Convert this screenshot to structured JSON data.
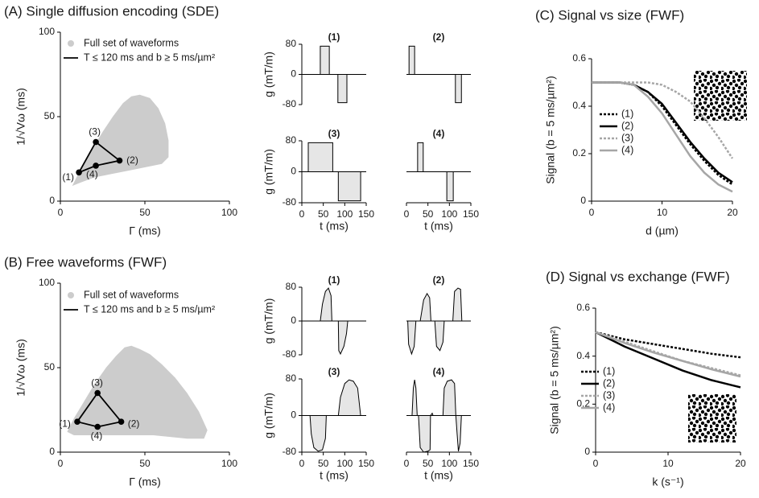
{
  "chart_data": [
    {
      "type": "scatter",
      "title": "(A) Single diffusion encoding (SDE)",
      "xlabel": "Γ (ms)",
      "ylabel": "1/√Vω (ms)",
      "xlim": [
        0,
        100
      ],
      "ylim": [
        0,
        100
      ],
      "xticks": [
        0,
        50,
        100
      ],
      "yticks": [
        0,
        50,
        100
      ],
      "series": [
        {
          "name": "Full set of waveforms",
          "kind": "area",
          "color": "#cccccc",
          "x": [
            7,
            10,
            14,
            19,
            25,
            31,
            37,
            42,
            47,
            53,
            58,
            62,
            64,
            64,
            60,
            50,
            40,
            30,
            20,
            12
          ],
          "values": [
            9,
            15,
            22,
            31,
            41,
            50,
            58,
            62,
            63,
            61,
            55,
            46,
            36,
            26,
            22,
            20,
            18,
            16,
            14,
            11
          ]
        },
        {
          "name": "T ≤ 120 ms and b ≥ 5 ms/µm²",
          "kind": "loop",
          "color": "#000000",
          "x": [
            11,
            21,
            35,
            21
          ],
          "values": [
            17,
            35,
            24,
            21
          ],
          "point_labels": [
            "(1)",
            "(3)",
            "(2)",
            "(4)"
          ]
        }
      ]
    },
    {
      "type": "wave",
      "label": "(1)",
      "ylabel": "g (mT/m)",
      "xlim": [
        0,
        150
      ],
      "ylim": [
        -80,
        80
      ],
      "yticks": [
        -80,
        0,
        80
      ],
      "x": [
        0,
        43,
        43,
        64,
        64,
        84,
        84,
        105,
        105,
        150
      ],
      "values": [
        0,
        0,
        75,
        75,
        0,
        0,
        -75,
        -75,
        0,
        0
      ]
    },
    {
      "type": "wave",
      "label": "(2)",
      "xlim": [
        0,
        150
      ],
      "ylim": [
        -80,
        80
      ],
      "x": [
        0,
        6,
        6,
        19,
        19,
        114,
        114,
        128,
        128,
        150
      ],
      "values": [
        0,
        0,
        75,
        75,
        0,
        0,
        -75,
        -75,
        0,
        0
      ]
    },
    {
      "type": "wave",
      "label": "(3)",
      "ylabel": "g (mT/m)",
      "xlabel": "t (ms)",
      "xlim": [
        0,
        150
      ],
      "ylim": [
        -80,
        80
      ],
      "yticks": [
        -80,
        0,
        80
      ],
      "xticks": [
        0,
        50,
        100,
        150
      ],
      "x": [
        0,
        15,
        15,
        72,
        72,
        85,
        85,
        137,
        137,
        150
      ],
      "values": [
        0,
        0,
        75,
        75,
        0,
        0,
        -75,
        -75,
        0,
        0
      ]
    },
    {
      "type": "wave",
      "label": "(4)",
      "xlabel": "t (ms)",
      "xlim": [
        0,
        150
      ],
      "ylim": [
        -80,
        80
      ],
      "xticks": [
        0,
        50,
        100,
        150
      ],
      "x": [
        0,
        26,
        26,
        39,
        39,
        94,
        94,
        109,
        109,
        150
      ],
      "values": [
        0,
        0,
        75,
        75,
        0,
        0,
        -75,
        -75,
        0,
        0
      ]
    },
    {
      "type": "scatter",
      "title": "(B) Free waveforms (FWF)",
      "xlabel": "Γ (ms)",
      "ylabel": "1/√Vω (ms)",
      "xlim": [
        0,
        100
      ],
      "ylim": [
        0,
        100
      ],
      "xticks": [
        0,
        50,
        100
      ],
      "yticks": [
        0,
        50,
        100
      ],
      "series": [
        {
          "name": "Full set of waveforms",
          "kind": "area",
          "color": "#cccccc",
          "x": [
            4,
            8,
            14,
            20,
            27,
            33,
            38,
            42,
            47,
            53,
            60,
            68,
            75,
            82,
            87,
            85,
            75,
            65,
            55,
            45,
            35,
            25,
            15,
            8
          ],
          "values": [
            12,
            20,
            30,
            40,
            50,
            57,
            62,
            63,
            61,
            58,
            52,
            44,
            35,
            24,
            13,
            8,
            8,
            9,
            10,
            10,
            10,
            10,
            10,
            10
          ]
        },
        {
          "name": "T ≤ 120 ms and b ≥ 5 ms/µm²",
          "kind": "loop",
          "color": "#000000",
          "x": [
            10,
            22,
            36,
            22
          ],
          "values": [
            18,
            35,
            18,
            15
          ],
          "point_labels": [
            "(1)",
            "(3)",
            "(2)",
            "(4)"
          ]
        }
      ]
    },
    {
      "type": "wave",
      "label": "(1)",
      "ylabel": "g (mT/m)",
      "xlim": [
        0,
        150
      ],
      "ylim": [
        -80,
        80
      ],
      "yticks": [
        -80,
        0,
        80
      ],
      "x": [
        0,
        43,
        48,
        55,
        62,
        68,
        70,
        85,
        86,
        90,
        98,
        104,
        107,
        150
      ],
      "values": [
        0,
        0,
        40,
        70,
        78,
        60,
        0,
        0,
        -70,
        -78,
        -60,
        -30,
        0,
        0
      ]
    },
    {
      "type": "wave",
      "label": "(2)",
      "xlim": [
        0,
        150
      ],
      "ylim": [
        -80,
        80
      ],
      "x": [
        0,
        3,
        5,
        12,
        18,
        22,
        32,
        40,
        48,
        54,
        57,
        66,
        70,
        78,
        85,
        88,
        108,
        112,
        120,
        126,
        129,
        150
      ],
      "values": [
        0,
        0,
        -55,
        -78,
        -60,
        0,
        0,
        50,
        65,
        55,
        0,
        0,
        -60,
        -70,
        -50,
        0,
        0,
        70,
        78,
        75,
        0,
        0
      ]
    },
    {
      "type": "wave",
      "label": "(3)",
      "ylabel": "g (mT/m)",
      "xlabel": "t (ms)",
      "xlim": [
        0,
        150
      ],
      "ylim": [
        -80,
        80
      ],
      "yticks": [
        -80,
        0,
        80
      ],
      "xticks": [
        0,
        50,
        100,
        150
      ],
      "x": [
        0,
        19,
        22,
        28,
        38,
        48,
        55,
        57,
        85,
        90,
        100,
        110,
        120,
        130,
        137,
        150
      ],
      "values": [
        0,
        0,
        -40,
        -70,
        -78,
        -75,
        -50,
        0,
        0,
        40,
        70,
        78,
        75,
        60,
        0,
        0
      ]
    },
    {
      "type": "wave",
      "label": "(4)",
      "xlabel": "t (ms)",
      "xlim": [
        0,
        150
      ],
      "ylim": [
        -80,
        80
      ],
      "xticks": [
        0,
        50,
        100,
        150
      ],
      "x": [
        0,
        13,
        16,
        19,
        22,
        25,
        28,
        32,
        40,
        50,
        55,
        56,
        60,
        62,
        85,
        88,
        95,
        105,
        112,
        115,
        118,
        121,
        125,
        128,
        150
      ],
      "values": [
        0,
        0,
        60,
        78,
        60,
        0,
        0,
        -70,
        -80,
        -78,
        -75,
        0,
        5,
        0,
        0,
        60,
        75,
        78,
        70,
        0,
        -40,
        -78,
        -60,
        0,
        0
      ]
    },
    {
      "type": "line",
      "title": "(C) Signal vs size (FWF)",
      "xlabel": "d (µm)",
      "ylabel": "Signal (b = 5 ms/µm²)",
      "xlim": [
        0,
        20
      ],
      "ylim": [
        0,
        0.6
      ],
      "xticks": [
        0,
        10,
        20
      ],
      "yticks": [
        0,
        0.2,
        0.4,
        0.6
      ],
      "x": [
        0,
        2,
        4,
        6,
        8,
        10,
        12,
        14,
        16,
        18,
        20
      ],
      "series": [
        {
          "name": "(1)",
          "color": "#000000",
          "dash": true,
          "values": [
            0.5,
            0.5,
            0.5,
            0.49,
            0.46,
            0.4,
            0.32,
            0.24,
            0.17,
            0.11,
            0.07
          ]
        },
        {
          "name": "(2)",
          "color": "#000000",
          "dash": false,
          "values": [
            0.5,
            0.5,
            0.5,
            0.49,
            0.46,
            0.41,
            0.33,
            0.25,
            0.18,
            0.12,
            0.08
          ]
        },
        {
          "name": "(3)",
          "color": "#a6a6a6",
          "dash": true,
          "values": [
            0.5,
            0.5,
            0.5,
            0.5,
            0.5,
            0.49,
            0.46,
            0.42,
            0.35,
            0.27,
            0.18
          ]
        },
        {
          "name": "(4)",
          "color": "#a6a6a6",
          "dash": false,
          "values": [
            0.5,
            0.5,
            0.5,
            0.49,
            0.44,
            0.37,
            0.28,
            0.19,
            0.12,
            0.07,
            0.04
          ]
        }
      ]
    },
    {
      "type": "line",
      "title": "(D) Signal vs exchange (FWF)",
      "xlabel": "k (s⁻¹)",
      "ylabel": "Signal (b = 5 ms/µm²)",
      "xlim": [
        0,
        20
      ],
      "ylim": [
        0,
        0.6
      ],
      "xticks": [
        0,
        10,
        20
      ],
      "yticks": [
        0,
        0.2,
        0.4,
        0.6
      ],
      "x": [
        0,
        4,
        8,
        12,
        16,
        20
      ],
      "series": [
        {
          "name": "(1)",
          "color": "#000000",
          "dash": true,
          "values": [
            0.5,
            0.47,
            0.45,
            0.43,
            0.41,
            0.395
          ]
        },
        {
          "name": "(2)",
          "color": "#000000",
          "dash": false,
          "values": [
            0.5,
            0.44,
            0.39,
            0.34,
            0.3,
            0.27
          ]
        },
        {
          "name": "(3)",
          "color": "#a6a6a6",
          "dash": true,
          "values": [
            0.5,
            0.46,
            0.42,
            0.38,
            0.35,
            0.32
          ]
        },
        {
          "name": "(4)",
          "color": "#a6a6a6",
          "dash": false,
          "values": [
            0.5,
            0.455,
            0.415,
            0.38,
            0.345,
            0.315
          ]
        }
      ]
    }
  ]
}
